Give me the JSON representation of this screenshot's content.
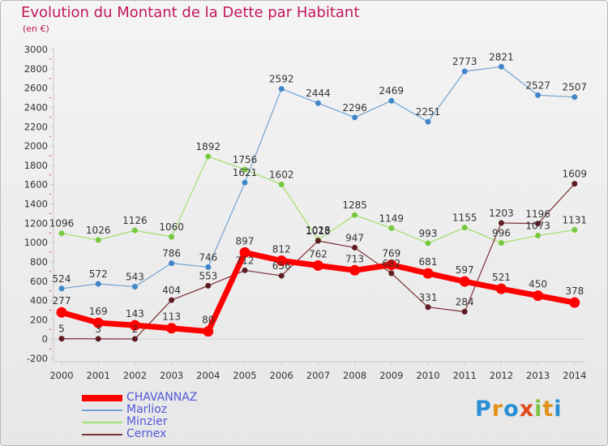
{
  "header": {
    "title": "Evolution du Montant de la Dette par Habitant",
    "subtitle": "(en €)"
  },
  "logo": {
    "text": "Proxiti"
  },
  "colors": {
    "title": "#c2185b",
    "legend_text": "#5157d9"
  },
  "chart_data": {
    "type": "line",
    "title": "Evolution du Montant de la Dette par Habitant",
    "ylabel": "(en €)",
    "xlabel": "",
    "ylim": [
      -200,
      3000
    ],
    "yticks": [
      -200,
      0,
      200,
      400,
      600,
      800,
      1000,
      1200,
      1400,
      1600,
      1800,
      2000,
      2200,
      2400,
      2600,
      2800,
      3000
    ],
    "categories": [
      "2000",
      "2001",
      "2002",
      "2003",
      "2004",
      "2005",
      "2006",
      "2007",
      "2008",
      "2009",
      "2010",
      "2011",
      "2012",
      "2013",
      "2014"
    ],
    "grid": false,
    "legend_position": "bottom-left",
    "series": [
      {
        "name": "Marlioz",
        "color": "#6fa2d1",
        "point": "#3f86c8",
        "width": 1.2,
        "radius": 3,
        "values": [
          524,
          572,
          543,
          786,
          746,
          1621,
          2592,
          2444,
          2296,
          2469,
          2251,
          2773,
          2821,
          2527,
          2507
        ]
      },
      {
        "name": "Minzier",
        "color": "#9ee06a",
        "point": "#76c93e",
        "width": 1.2,
        "radius": 3,
        "values": [
          1096,
          1026,
          1126,
          1060,
          1892,
          1756,
          1602,
          1028,
          1285,
          1149,
          993,
          1155,
          996,
          1073,
          1131
        ]
      },
      {
        "name": "Cernex",
        "color": "#7a2e34",
        "point": "#5e1b22",
        "width": 1.2,
        "radius": 3,
        "values": [
          5,
          3,
          2,
          404,
          553,
          712,
          656,
          1018,
          947,
          682,
          331,
          284,
          1203,
          1196,
          1609
        ]
      },
      {
        "name": "CHAVANNAZ",
        "color": "#ff0000",
        "point": "#ff0000",
        "width": 7,
        "radius": 6,
        "values": [
          277,
          169,
          143,
          113,
          80,
          897,
          812,
          762,
          713,
          769,
          681,
          597,
          521,
          450,
          378
        ]
      }
    ],
    "legend_order": [
      "CHAVANNAZ",
      "Marlioz",
      "Minzier",
      "Cernex"
    ]
  }
}
